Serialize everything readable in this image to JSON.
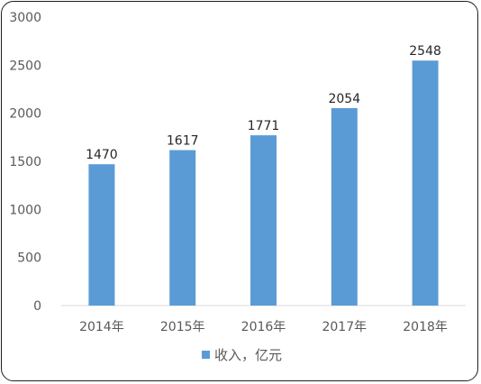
{
  "chart_data": {
    "type": "bar",
    "title": "",
    "xlabel": "",
    "ylabel": "",
    "categories": [
      "2014年",
      "2015年",
      "2016年",
      "2017年",
      "2018年"
    ],
    "series": [
      {
        "name": "收入，亿元",
        "values": [
          1470,
          1617,
          1771,
          2054,
          2548
        ],
        "color": "#5b9bd5"
      }
    ],
    "data_labels": [
      "1470",
      "1617",
      "1771",
      "2054",
      "2548"
    ],
    "ylim": [
      0,
      3000
    ],
    "yticks": [
      0,
      500,
      1000,
      1500,
      2000,
      2500,
      3000
    ],
    "ytick_labels": [
      "0",
      "500",
      "1000",
      "1500",
      "2000",
      "2500",
      "3000"
    ],
    "grid": false,
    "legend_position": "bottom"
  }
}
